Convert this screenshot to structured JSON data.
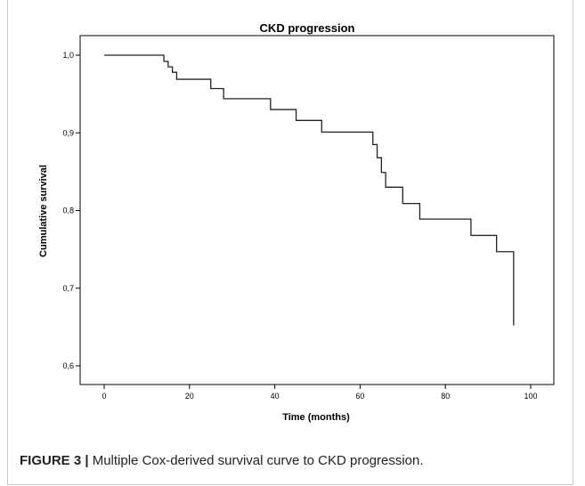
{
  "caption": {
    "label": "FIGURE 3 |",
    "text": " Multiple Cox-derived survival curve to CKD progression."
  },
  "chart_data": {
    "type": "line",
    "step": true,
    "title": "CKD progression",
    "xlabel": "Time (months)",
    "ylabel": "Cumulative survival",
    "xlim": [
      0,
      100
    ],
    "ylim": [
      0.6,
      1.0
    ],
    "x_ticks": [
      0,
      20,
      40,
      60,
      80,
      100
    ],
    "x_tick_labels": [
      "0",
      "20",
      "40",
      "60",
      "80",
      "100"
    ],
    "y_ticks": [
      0.6,
      0.7,
      0.8,
      0.9,
      1.0
    ],
    "y_tick_labels": [
      "0,6",
      "0,7",
      "0,8",
      "0,9",
      "1,0"
    ],
    "grid": false,
    "line_color": "#222222",
    "series": [
      {
        "x": [
          0,
          14,
          15,
          16,
          17,
          25,
          28,
          39,
          45,
          51,
          63,
          64,
          65,
          66,
          70,
          74,
          86,
          92,
          96
        ],
        "y": [
          1.0,
          0.992,
          0.985,
          0.978,
          0.969,
          0.957,
          0.944,
          0.93,
          0.916,
          0.901,
          0.885,
          0.868,
          0.849,
          0.83,
          0.809,
          0.789,
          0.768,
          0.747,
          0.652
        ]
      }
    ]
  }
}
